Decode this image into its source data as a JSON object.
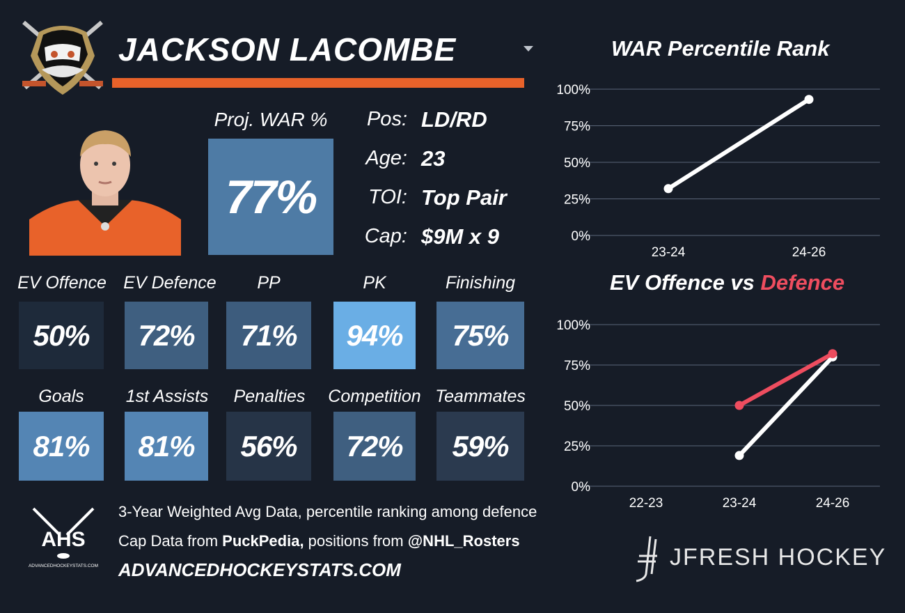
{
  "player": {
    "name": "JACKSON LACOMBE"
  },
  "colors": {
    "background": "#161c27",
    "accent_bar": "#e8622a",
    "offence_line": "#ffffff",
    "defence_line": "#ee4d5f",
    "grid": "#5a6678"
  },
  "icons": {
    "team_logo": "ducks-logo-icon",
    "dropdown": "chevron-down-icon",
    "ahs_logo": "ahs-logo-icon",
    "jfresh_logo": "jfresh-stick-icon"
  },
  "projected": {
    "label": "Proj. WAR %",
    "value": "77%",
    "percentile": 77,
    "color": "#4e7ba5"
  },
  "info": [
    {
      "label": "Pos:",
      "value": "LD/RD"
    },
    {
      "label": "Age:",
      "value": "23"
    },
    {
      "label": "TOI:",
      "value": "Top Pair"
    },
    {
      "label": "Cap:",
      "value": "$9M x 9"
    }
  ],
  "tiles_row1": [
    {
      "label": "EV Offence",
      "value": "50%",
      "percentile": 50,
      "color": "#1e2a3a"
    },
    {
      "label": "EV Defence",
      "value": "72%",
      "percentile": 72,
      "color": "#3f5f80"
    },
    {
      "label": "PP",
      "value": "71%",
      "percentile": 71,
      "color": "#3d5c7d"
    },
    {
      "label": "PK",
      "value": "94%",
      "percentile": 94,
      "color": "#6aaee5"
    },
    {
      "label": "Finishing",
      "value": "75%",
      "percentile": 75,
      "color": "#476d94"
    }
  ],
  "tiles_row2": [
    {
      "label": "Goals",
      "value": "81%",
      "percentile": 81,
      "color": "#5485b4"
    },
    {
      "label": "1st Assists",
      "value": "81%",
      "percentile": 81,
      "color": "#5485b4"
    },
    {
      "label": "Penalties",
      "value": "56%",
      "percentile": 56,
      "color": "#263447"
    },
    {
      "label": "Competition",
      "value": "72%",
      "percentile": 72,
      "color": "#3f5f80"
    },
    {
      "label": "Teammates",
      "value": "59%",
      "percentile": 59,
      "color": "#2b3a4f"
    }
  ],
  "chart_data": [
    {
      "type": "line",
      "title": "WAR Percentile Rank",
      "categories": [
        "23-24",
        "24-26"
      ],
      "yticks": [
        "100%",
        "75%",
        "50%",
        "25%",
        "0%"
      ],
      "ylim": [
        0,
        100
      ],
      "grid": true,
      "series": [
        {
          "values": [
            32,
            93
          ],
          "color": "#ffffff"
        }
      ]
    },
    {
      "type": "line",
      "title_part1": "EV Offence vs ",
      "title_part2": "Defence",
      "categories": [
        "22-23",
        "23-24",
        "24-26"
      ],
      "yticks": [
        "100%",
        "75%",
        "50%",
        "25%",
        "0%"
      ],
      "ylim": [
        0,
        100
      ],
      "grid": true,
      "series": [
        {
          "values": [
            null,
            19,
            80
          ],
          "color": "#ffffff"
        },
        {
          "values": [
            null,
            50,
            82
          ],
          "color": "#ee4d5f"
        }
      ]
    }
  ],
  "footer": {
    "ahs_text": "AHS",
    "ahs_small": "ADVANCEDHOCKEYSTATS.COM",
    "line1": "3-Year Weighted Avg Data, percentile ranking among defence",
    "line2_a": "Cap Data from ",
    "line2_b": "PuckPedia,",
    "line2_c": " positions from ",
    "line2_d": "@NHL_Rosters",
    "url": "ADVANCEDHOCKEYSTATS.COM",
    "brand": "JFRESH HOCKEY"
  }
}
